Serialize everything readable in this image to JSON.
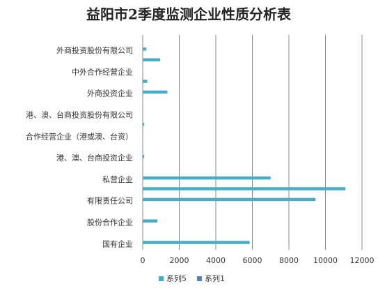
{
  "chart_data": {
    "type": "hbar",
    "title": "益阳市2季度监测企业性质分析表",
    "categories": [
      "国有企业",
      null,
      "股份合作企业",
      null,
      "有限责任公司",
      null,
      "私营企业",
      null,
      "港、澳、台商投资企业",
      null,
      "合作经营企业（港或澳、台资）",
      null,
      "港、澳、台商投资股份有限公司",
      null,
      "外商投资企业",
      null,
      "中外合作经营企业",
      null,
      "外商投资股份有限公司",
      null
    ],
    "series": [
      {
        "name": "系列5",
        "color": "#4bacc6",
        "values": [
          5850,
          0,
          800,
          0,
          9450,
          11100,
          7000,
          0,
          80,
          0,
          0,
          80,
          0,
          0,
          1350,
          250,
          0,
          950,
          200,
          0
        ]
      },
      {
        "name": "系列1",
        "color": "#4f81bd",
        "values": [
          20,
          20,
          20,
          20,
          20,
          20,
          20,
          20,
          20,
          20,
          20,
          20,
          20,
          20,
          20,
          20,
          20,
          20,
          20,
          20
        ]
      }
    ],
    "xlim": [
      0,
      12000
    ],
    "xticks": [
      0,
      2000,
      4000,
      6000,
      8000,
      10000,
      12000
    ],
    "grid": true,
    "legend": "bottom"
  }
}
